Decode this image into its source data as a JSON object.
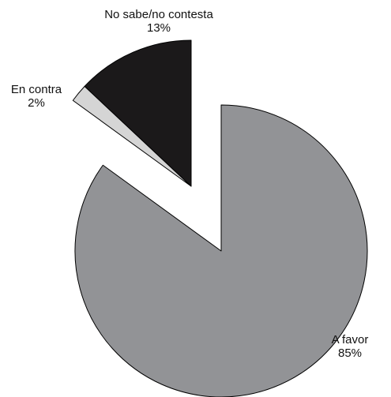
{
  "chart_data": {
    "type": "pie",
    "title": "",
    "slices": [
      {
        "label": "A favor",
        "value": 85,
        "value_label": "85%",
        "color": "#929396",
        "exploded": false
      },
      {
        "label": "En contra",
        "value": 2,
        "value_label": "2%",
        "color": "#d5d5d5",
        "exploded": true
      },
      {
        "label": "No sabe/no contesta",
        "value": 13,
        "value_label": "13%",
        "color": "#1b191a",
        "exploded": true
      }
    ],
    "start_angle": "12 o'clock",
    "direction": "clockwise",
    "legend": "none"
  }
}
